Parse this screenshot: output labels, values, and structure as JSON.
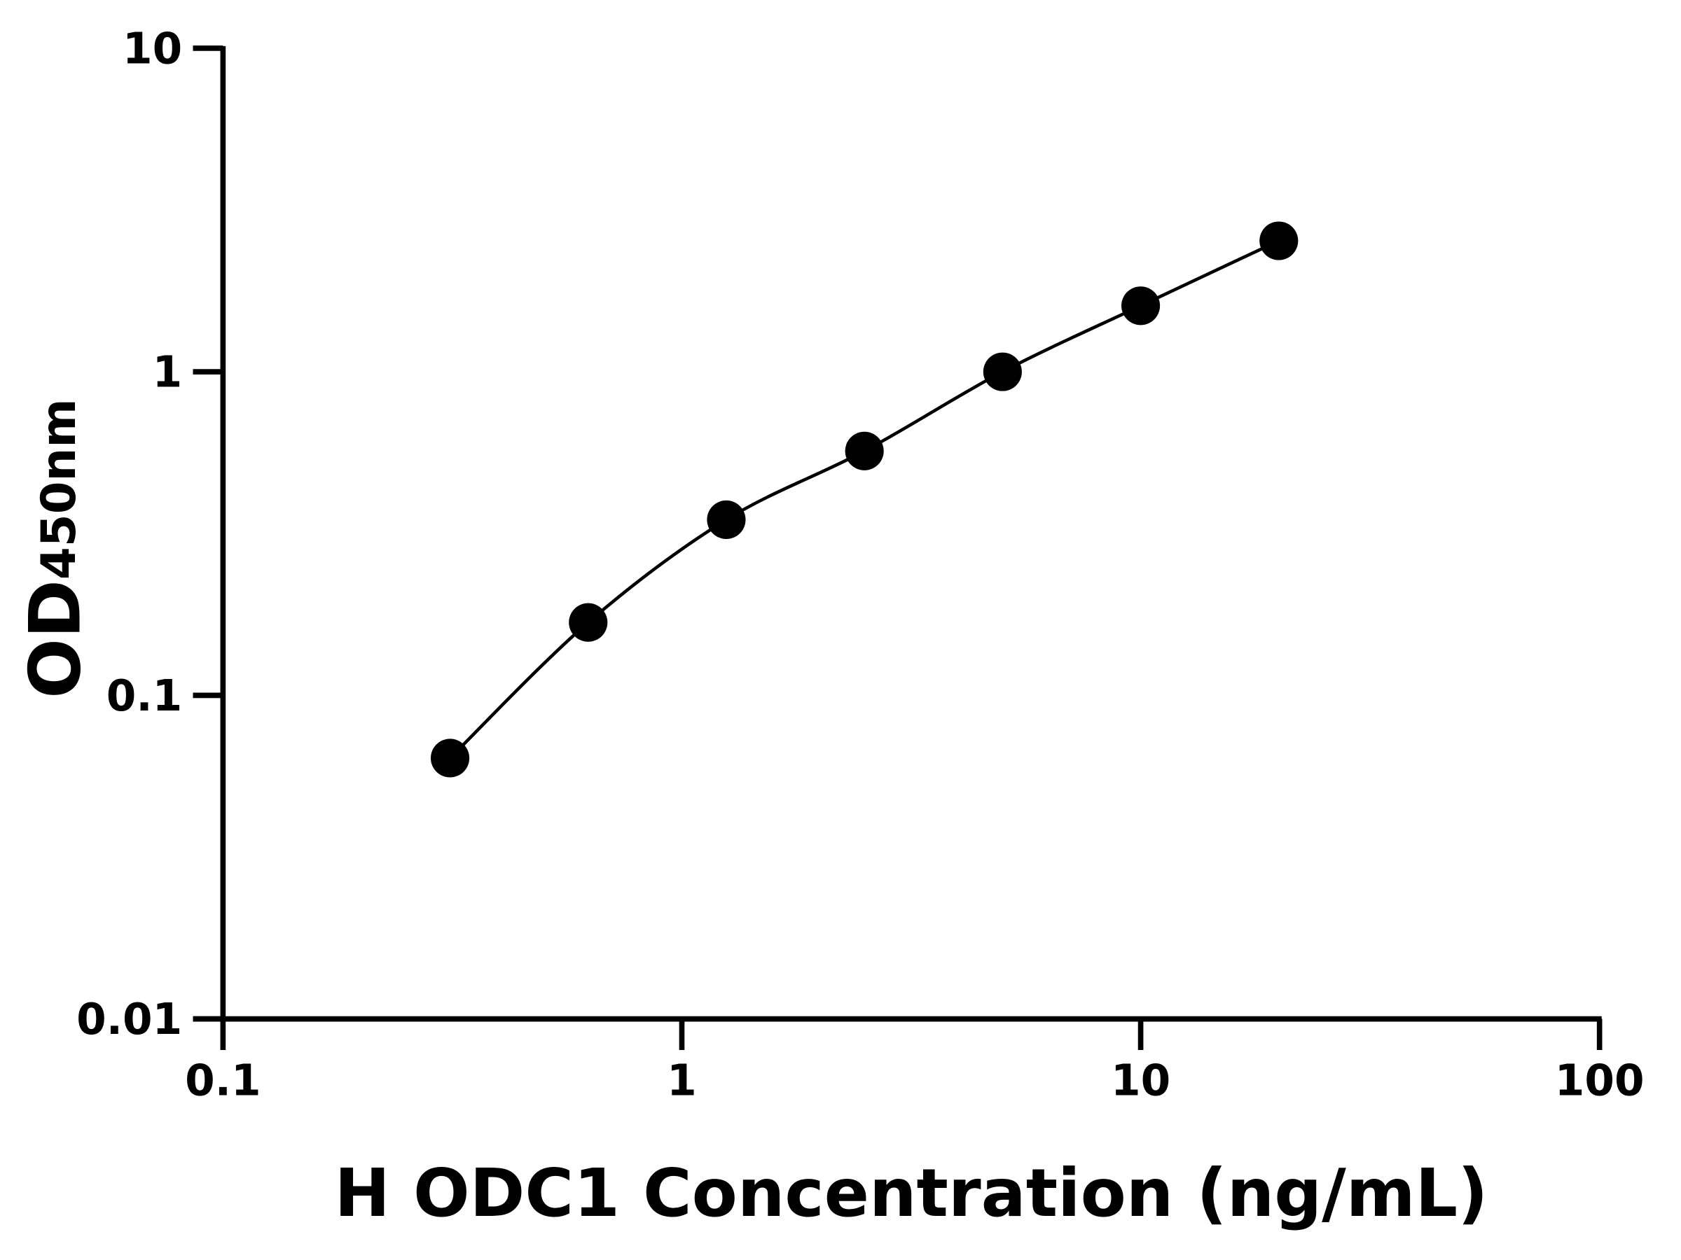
{
  "chart_data": {
    "type": "scatter",
    "title": "",
    "xlabel": "H ODC1 Concentration (ng/mL)",
    "ylabel": "OD",
    "ylabel_subscript": "450nm",
    "x_scale": "log",
    "y_scale": "log",
    "xlim": [
      0.1,
      100
    ],
    "ylim": [
      0.01,
      10
    ],
    "x_ticks": [
      0.1,
      1,
      10,
      100
    ],
    "x_tick_labels": [
      "0.1",
      "1",
      "10",
      "100"
    ],
    "y_ticks": [
      0.01,
      0.1,
      1,
      10
    ],
    "y_tick_labels": [
      "0.01",
      "0.1",
      "1",
      "10"
    ],
    "grid": false,
    "legend": "none",
    "series": [
      {
        "x": [
          0.3125,
          0.625,
          1.25,
          2.5,
          5,
          10,
          20
        ],
        "y": [
          0.064,
          0.168,
          0.349,
          0.569,
          1.0,
          1.6,
          2.54
        ],
        "marker": "circle",
        "fit_curve": true,
        "color": "#000000"
      }
    ]
  }
}
